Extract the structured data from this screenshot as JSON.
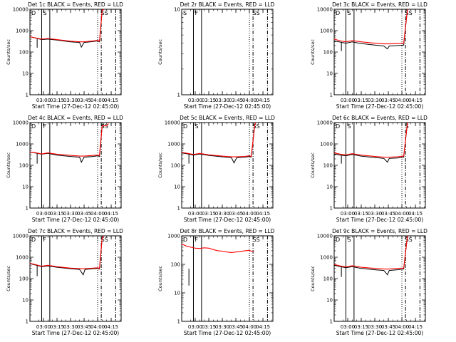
{
  "figure": {
    "background": "#ffffff",
    "axis_color": "#000000",
    "events_color": "#000000",
    "lld_color": "#ff0000"
  },
  "chart_data": [
    {
      "type": "line",
      "title": "Det 1c BLACK = Events, RED = LLD",
      "xlabel": "Start Time (27-Dec-12 02:45:00)",
      "ylabel": "Counts/sec",
      "y_scale": "log",
      "ylim": [
        1,
        10000
      ],
      "y_ticks": [
        "1",
        "10",
        "100",
        "1000",
        "10000"
      ],
      "x_range": [
        "02:45",
        "04:26"
      ],
      "x_ticks": [
        "03:00",
        "03:15",
        "03:30",
        "03:45",
        "04:00",
        "04:15"
      ],
      "vlines": {
        "solid": [
          "02:58",
          "03:07"
        ],
        "dotted": [
          "04:00"
        ],
        "dashdot": [
          "04:04",
          "04:20"
        ]
      },
      "top_labels": [
        {
          "x": "02:45",
          "text": "D"
        },
        {
          "x": "02:58",
          "text": "S"
        },
        {
          "x": "04:02",
          "text": "SS"
        }
      ],
      "series": [
        {
          "role": "events",
          "x": [
            "02:45",
            "02:52",
            "02:58",
            "03:05",
            "03:15",
            "03:30",
            "03:40",
            "03:42",
            "03:45",
            "03:55",
            "04:00",
            "04:02",
            "04:05",
            "04:07"
          ],
          "y": [
            520,
            440,
            380,
            400,
            360,
            300,
            280,
            170,
            280,
            310,
            330,
            300,
            9000,
            12000
          ],
          "spikes": [
            {
              "x": "02:53",
              "y": 160
            }
          ]
        },
        {
          "role": "lld",
          "x": [
            "02:45",
            "02:52",
            "02:58",
            "03:05",
            "03:15",
            "03:30",
            "03:40",
            "03:45",
            "03:55",
            "04:00",
            "04:02",
            "04:05",
            "04:07"
          ],
          "y": [
            520,
            450,
            400,
            430,
            380,
            320,
            300,
            300,
            330,
            350,
            320,
            9000,
            12000
          ]
        }
      ]
    },
    {
      "type": "line",
      "title": "Det 2r BLACK = Events, RED = LLD",
      "xlabel": "Start Time (27-Dec-12 02:45:00)",
      "ylabel": "Counts/sec",
      "y_scale": "log",
      "ylim": [
        1,
        10
      ],
      "y_ticks": [
        "1",
        "10"
      ],
      "x_range": [
        "02:45",
        "04:26"
      ],
      "x_ticks": [
        "03:00",
        "03:15",
        "03:30",
        "03:45",
        "04:00",
        "04:15"
      ],
      "vlines": {
        "solid": [
          "02:58",
          "03:07"
        ],
        "dotted": [
          "04:00"
        ],
        "dashdot": [
          "04:04",
          "04:20"
        ]
      },
      "top_labels": [
        {
          "x": "02:45",
          "text": "S"
        },
        {
          "x": "02:58",
          "text": "F"
        },
        {
          "x": "04:02",
          "text": "SS"
        }
      ],
      "series": []
    },
    {
      "type": "line",
      "title": "Det 3c BLACK = Events, RED = LLD",
      "xlabel": "Start Time (27-Dec-12 02:45:00)",
      "ylabel": "Counts/sec",
      "y_scale": "log",
      "ylim": [
        1,
        10000
      ],
      "y_ticks": [
        "1",
        "10",
        "100",
        "1000",
        "10000"
      ],
      "x_range": [
        "02:45",
        "04:26"
      ],
      "x_ticks": [
        "03:00",
        "03:15",
        "03:30",
        "03:45",
        "04:00",
        "04:15"
      ],
      "vlines": {
        "solid": [
          "02:58",
          "03:07"
        ],
        "dotted": [
          "04:00"
        ],
        "dashdot": [
          "04:04",
          "04:20"
        ]
      },
      "top_labels": [
        {
          "x": "02:45",
          "text": "D"
        },
        {
          "x": "02:58",
          "text": "S"
        },
        {
          "x": "04:02",
          "text": "SS"
        }
      ],
      "series": [
        {
          "role": "events",
          "x": [
            "02:45",
            "02:52",
            "02:58",
            "03:05",
            "03:15",
            "03:30",
            "03:40",
            "03:44",
            "03:46",
            "03:55",
            "04:02",
            "04:06",
            "04:07"
          ],
          "y": [
            330,
            290,
            260,
            300,
            250,
            210,
            190,
            140,
            190,
            200,
            210,
            9000,
            12000
          ],
          "spikes": [
            {
              "x": "02:53",
              "y": 110
            }
          ]
        },
        {
          "role": "lld",
          "x": [
            "02:45",
            "02:52",
            "02:58",
            "03:05",
            "03:15",
            "03:30",
            "03:40",
            "03:46",
            "03:55",
            "04:02",
            "04:06",
            "04:07"
          ],
          "y": [
            400,
            330,
            300,
            340,
            300,
            260,
            240,
            240,
            250,
            260,
            9000,
            12000
          ]
        }
      ]
    },
    {
      "type": "line",
      "title": "Det 4c BLACK = Events, RED = LLD",
      "xlabel": "Start Time (27-Dec-12 02:45:00)",
      "ylabel": "Counts/sec",
      "y_scale": "log",
      "ylim": [
        1,
        10000
      ],
      "y_ticks": [
        "1",
        "10",
        "100",
        "1000",
        "10000"
      ],
      "x_range": [
        "02:45",
        "04:26"
      ],
      "x_ticks": [
        "03:00",
        "03:15",
        "03:30",
        "03:45",
        "04:00",
        "04:15"
      ],
      "vlines": {
        "solid": [
          "02:58",
          "03:07"
        ],
        "dotted": [
          "04:00"
        ],
        "dashdot": [
          "04:04",
          "04:20"
        ]
      },
      "top_labels": [
        {
          "x": "02:45",
          "text": "D"
        },
        {
          "x": "02:58",
          "text": "F"
        },
        {
          "x": "04:02",
          "text": "SS"
        }
      ],
      "series": [
        {
          "role": "events",
          "x": [
            "02:45",
            "02:52",
            "02:58",
            "03:05",
            "03:15",
            "03:30",
            "03:40",
            "03:42",
            "03:45",
            "03:55",
            "04:00",
            "04:02",
            "04:05",
            "04:07"
          ],
          "y": [
            420,
            370,
            330,
            360,
            300,
            260,
            240,
            140,
            240,
            260,
            280,
            260,
            7000,
            9000
          ],
          "spikes": [
            {
              "x": "02:53",
              "y": 120
            }
          ]
        },
        {
          "role": "lld",
          "x": [
            "02:45",
            "02:52",
            "02:58",
            "03:05",
            "03:15",
            "03:30",
            "03:40",
            "03:45",
            "03:55",
            "04:00",
            "04:02",
            "04:05",
            "04:10",
            "04:12"
          ],
          "y": [
            420,
            380,
            340,
            380,
            330,
            290,
            270,
            270,
            290,
            300,
            290,
            7000,
            7000,
            9000
          ]
        }
      ]
    },
    {
      "type": "line",
      "title": "Det 5c BLACK = Events, RED = LLD",
      "xlabel": "Start Time (27-Dec-12 02:45:00)",
      "ylabel": "Counts/sec",
      "y_scale": "log",
      "ylim": [
        1,
        10000
      ],
      "y_ticks": [
        "1",
        "10",
        "100",
        "1000",
        "10000"
      ],
      "x_range": [
        "02:45",
        "04:26"
      ],
      "x_ticks": [
        "03:00",
        "03:15",
        "03:30",
        "03:45",
        "04:00",
        "04:15"
      ],
      "vlines": {
        "solid": [
          "02:58",
          "03:07"
        ],
        "dotted": [
          "04:00"
        ],
        "dashdot": [
          "04:04",
          "04:20"
        ]
      },
      "top_labels": [
        {
          "x": "02:45",
          "text": "D"
        },
        {
          "x": "02:58",
          "text": "S"
        },
        {
          "x": "04:02",
          "text": "SS"
        }
      ],
      "series": [
        {
          "role": "events",
          "x": [
            "02:45",
            "02:52",
            "02:58",
            "03:05",
            "03:15",
            "03:30",
            "03:40",
            "03:43",
            "03:46",
            "03:55",
            "04:00",
            "04:02",
            "04:06",
            "04:07"
          ],
          "y": [
            380,
            340,
            300,
            340,
            290,
            250,
            230,
            130,
            230,
            240,
            260,
            240,
            8000,
            11000
          ],
          "spikes": [
            {
              "x": "02:53",
              "y": 120
            }
          ]
        },
        {
          "role": "lld",
          "x": [
            "02:45",
            "02:52",
            "02:58",
            "03:05",
            "03:15",
            "03:30",
            "03:40",
            "03:46",
            "03:55",
            "04:00",
            "04:02",
            "04:06",
            "04:07"
          ],
          "y": [
            400,
            360,
            320,
            360,
            310,
            270,
            250,
            250,
            260,
            280,
            260,
            8000,
            11000
          ]
        }
      ]
    },
    {
      "type": "line",
      "title": "Det 6c BLACK = Events, RED = LLD",
      "xlabel": "Start Time (27-Dec-12 02:45:00)",
      "ylabel": "Counts/sec",
      "y_scale": "log",
      "ylim": [
        1,
        10000
      ],
      "y_ticks": [
        "1",
        "10",
        "100",
        "1000",
        "10000"
      ],
      "x_range": [
        "02:45",
        "04:26"
      ],
      "x_ticks": [
        "03:00",
        "03:15",
        "03:30",
        "03:45",
        "04:00",
        "04:15"
      ],
      "vlines": {
        "solid": [
          "02:58",
          "03:07"
        ],
        "dotted": [
          "04:00"
        ],
        "dashdot": [
          "04:04",
          "04:20"
        ]
      },
      "top_labels": [
        {
          "x": "02:45",
          "text": "D"
        },
        {
          "x": "02:58",
          "text": "S"
        },
        {
          "x": "04:02",
          "text": "S"
        }
      ],
      "series": [
        {
          "role": "events",
          "x": [
            "02:45",
            "02:52",
            "02:58",
            "03:05",
            "03:15",
            "03:30",
            "03:40",
            "03:44",
            "03:46",
            "03:55",
            "04:02",
            "04:06",
            "04:07"
          ],
          "y": [
            340,
            300,
            280,
            320,
            270,
            230,
            210,
            140,
            210,
            220,
            240,
            9000,
            12000
          ],
          "spikes": [
            {
              "x": "02:53",
              "y": 120
            }
          ]
        },
        {
          "role": "lld",
          "x": [
            "02:45",
            "02:52",
            "02:58",
            "03:05",
            "03:15",
            "03:30",
            "03:40",
            "03:46",
            "03:55",
            "04:02",
            "04:06",
            "04:07"
          ],
          "y": [
            380,
            330,
            310,
            350,
            300,
            260,
            240,
            240,
            250,
            270,
            9000,
            12000
          ]
        }
      ]
    },
    {
      "type": "line",
      "title": "Det 7c BLACK = Events, RED = LLD",
      "xlabel": "Start Time (27-Dec-12 02:45:00)",
      "ylabel": "Counts/sec",
      "y_scale": "log",
      "ylim": [
        1,
        10000
      ],
      "y_ticks": [
        "1",
        "10",
        "100",
        "1000",
        "10000"
      ],
      "x_range": [
        "02:45",
        "04:26"
      ],
      "x_ticks": [
        "03:00",
        "03:15",
        "03:30",
        "03:45",
        "04:00",
        "04:15"
      ],
      "vlines": {
        "solid": [
          "02:58",
          "03:07"
        ],
        "dotted": [
          "04:00"
        ],
        "dashdot": [
          "04:04",
          "04:20"
        ]
      },
      "top_labels": [
        {
          "x": "02:45",
          "text": "D"
        },
        {
          "x": "02:58",
          "text": "F"
        },
        {
          "x": "04:02",
          "text": "SS"
        }
      ],
      "series": [
        {
          "role": "events",
          "x": [
            "02:45",
            "02:52",
            "02:58",
            "03:05",
            "03:15",
            "03:30",
            "03:40",
            "03:44",
            "03:46",
            "03:55",
            "04:00",
            "04:02",
            "04:05",
            "04:07"
          ],
          "y": [
            500,
            420,
            360,
            390,
            340,
            290,
            270,
            150,
            270,
            290,
            300,
            280,
            8000,
            11000
          ],
          "spikes": [
            {
              "x": "02:53",
              "y": 130
            }
          ]
        },
        {
          "role": "lld",
          "x": [
            "02:45",
            "02:52",
            "02:58",
            "03:05",
            "03:15",
            "03:30",
            "03:40",
            "03:46",
            "03:55",
            "04:00",
            "04:02",
            "04:05",
            "04:07"
          ],
          "y": [
            520,
            440,
            380,
            420,
            360,
            310,
            290,
            290,
            310,
            320,
            300,
            8000,
            11000
          ]
        }
      ]
    },
    {
      "type": "line",
      "title": "Det 8r BLACK = Events, RED = LLD",
      "xlabel": "Start Time (27-Dec-12 02:45:00)",
      "ylabel": "Counts/sec",
      "y_scale": "log",
      "ylim": [
        1,
        1000
      ],
      "y_ticks": [
        "1",
        "10",
        "100",
        "1000"
      ],
      "x_range": [
        "02:45",
        "04:26"
      ],
      "x_ticks": [
        "03:00",
        "03:15",
        "03:30",
        "03:45",
        "04:00",
        "04:15"
      ],
      "vlines": {
        "solid": [
          "02:58",
          "03:07"
        ],
        "dotted": [
          "04:00"
        ],
        "dashdot": [
          "04:04",
          "04:20"
        ]
      },
      "top_labels": [
        {
          "x": "02:45",
          "text": "D"
        },
        {
          "x": "02:58",
          "text": "F"
        },
        {
          "x": "04:02",
          "text": "SS"
        }
      ],
      "series": [
        {
          "role": "events",
          "x": [],
          "y": [],
          "spikes": [
            {
              "x": "02:53",
              "y": 18,
              "top": 70
            }
          ]
        },
        {
          "role": "lld",
          "x": [
            "02:45",
            "02:50",
            "02:55",
            "03:00",
            "03:05",
            "03:10",
            "03:15",
            "03:20",
            "03:25",
            "03:30",
            "03:35",
            "03:40",
            "03:45",
            "03:50",
            "03:55",
            "04:00",
            "04:02",
            "04:05"
          ],
          "y": [
            520,
            440,
            400,
            370,
            360,
            380,
            370,
            330,
            300,
            290,
            270,
            260,
            270,
            280,
            300,
            310,
            290,
            280
          ]
        }
      ]
    },
    {
      "type": "line",
      "title": "Det 9c BLACK = Events, RED = LLD",
      "xlabel": "Start Time (27-Dec-12 02:45:00)",
      "ylabel": "Counts/sec",
      "y_scale": "log",
      "ylim": [
        1,
        10000
      ],
      "y_ticks": [
        "1",
        "10",
        "100",
        "1000",
        "10000"
      ],
      "x_range": [
        "02:45",
        "04:26"
      ],
      "x_ticks": [
        "03:00",
        "03:15",
        "03:30",
        "03:45",
        "04:00",
        "04:15"
      ],
      "vlines": {
        "solid": [
          "02:58",
          "03:07"
        ],
        "dotted": [
          "04:00"
        ],
        "dashdot": [
          "04:04",
          "04:20"
        ]
      },
      "top_labels": [
        {
          "x": "02:45",
          "text": "D"
        },
        {
          "x": "02:58",
          "text": "S"
        },
        {
          "x": "04:02",
          "text": "SS"
        }
      ],
      "series": [
        {
          "role": "events",
          "x": [
            "02:45",
            "02:52",
            "02:58",
            "03:05",
            "03:15",
            "03:30",
            "03:40",
            "03:44",
            "03:46",
            "03:55",
            "04:02",
            "04:06",
            "04:07"
          ],
          "y": [
            420,
            360,
            320,
            360,
            300,
            260,
            240,
            150,
            240,
            260,
            280,
            9000,
            12000
          ],
          "spikes": [
            {
              "x": "02:53",
              "y": 120
            }
          ]
        },
        {
          "role": "lld",
          "x": [
            "02:45",
            "02:52",
            "02:58",
            "03:05",
            "03:15",
            "03:30",
            "03:40",
            "03:46",
            "03:55",
            "04:02",
            "04:06",
            "04:07"
          ],
          "y": [
            460,
            390,
            350,
            400,
            340,
            300,
            280,
            280,
            300,
            310,
            9000,
            12000
          ]
        }
      ]
    }
  ]
}
